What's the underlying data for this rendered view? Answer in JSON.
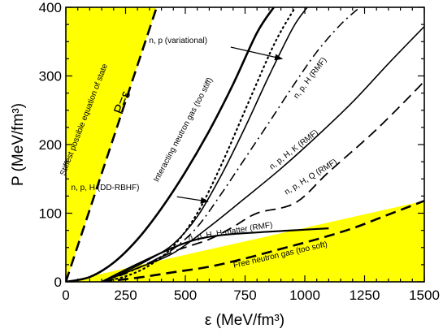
{
  "chart_data": {
    "type": "line",
    "title": "",
    "xlabel": "ε (MeV/fm³)",
    "ylabel": "P (MeV/fm³)",
    "xlim": [
      0,
      1500
    ],
    "ylim": [
      0,
      400
    ],
    "x_ticks": [
      "0",
      "250",
      "500",
      "750",
      "1000",
      "1250",
      "1500"
    ],
    "y_ticks": [
      "0",
      "100",
      "200",
      "300",
      "400"
    ],
    "grid": false,
    "legend": "none",
    "fill_color": "#ffff00",
    "regions": [
      {
        "name": "causality-excluded",
        "label": "",
        "points": [
          [
            0,
            0
          ],
          [
            0,
            400
          ],
          [
            380,
            400
          ]
        ]
      },
      {
        "name": "free-gas-excluded",
        "label": "",
        "points": [
          [
            0,
            0
          ],
          [
            1500,
            118
          ],
          [
            1500,
            0
          ]
        ]
      }
    ],
    "series": [
      {
        "name": "stiffest",
        "style": "dashed",
        "width": 2.6,
        "x": [
          0,
          380
        ],
        "y": [
          0,
          400
        ]
      },
      {
        "name": "interacting-neutron",
        "style": "solid",
        "width": 2.6,
        "x": [
          0,
          100,
          200,
          300,
          400,
          500,
          600,
          700,
          800,
          870
        ],
        "y": [
          0,
          7,
          28,
          62,
          107,
          160,
          220,
          288,
          363,
          400
        ]
      },
      {
        "name": "variational",
        "style": "dotted",
        "width": 2.2,
        "x": [
          150,
          250,
          350,
          450,
          550,
          650,
          750,
          850,
          900,
          960
        ],
        "y": [
          0,
          8,
          24,
          52,
          100,
          170,
          250,
          330,
          365,
          400
        ]
      },
      {
        "name": "npH-DDRBHF",
        "style": "solid",
        "width": 1.6,
        "x": [
          150,
          250,
          350,
          450,
          550,
          650,
          750,
          850,
          950,
          1010
        ],
        "y": [
          0,
          15,
          33,
          55,
          95,
          155,
          225,
          300,
          370,
          400
        ]
      },
      {
        "name": "npH-RMF",
        "style": "dashdot",
        "width": 1.6,
        "x": [
          150,
          250,
          350,
          450,
          550,
          650,
          750,
          850,
          950,
          1050,
          1150,
          1230
        ],
        "y": [
          0,
          12,
          28,
          48,
          80,
          128,
          180,
          232,
          285,
          335,
          375,
          400
        ]
      },
      {
        "name": "npHK-RMF",
        "style": "solid",
        "width": 1.6,
        "x": [
          150,
          300,
          450,
          600,
          750,
          900,
          1050,
          1200,
          1350,
          1500
        ],
        "y": [
          0,
          20,
          42,
          80,
          122,
          165,
          212,
          262,
          318,
          372
        ]
      },
      {
        "name": "npHQ-RMF",
        "style": "dashed",
        "width": 1.8,
        "x": [
          150,
          300,
          450,
          600,
          700,
          800,
          960,
          1100,
          1300,
          1500
        ],
        "y": [
          0,
          20,
          44,
          62,
          80,
          100,
          115,
          160,
          222,
          292
        ]
      },
      {
        "name": "npH-Hmatter",
        "style": "solid",
        "width": 2.2,
        "x": [
          150,
          300,
          450,
          550,
          650,
          800,
          950,
          1100
        ],
        "y": [
          0,
          26,
          50,
          62,
          68,
          72,
          75,
          78
        ]
      },
      {
        "name": "free-neutron",
        "style": "dashed",
        "width": 2.6,
        "x": [
          150,
          300,
          450,
          600,
          750,
          900,
          1050,
          1200,
          1350,
          1500
        ],
        "y": [
          0,
          6,
          14,
          22,
          34,
          48,
          62,
          78,
          98,
          118
        ]
      }
    ],
    "annotations": [
      {
        "name": "label-stiffest",
        "text": "Stiffest possible equation of state",
        "x": 85,
        "y": 235,
        "rotate": -69,
        "size": "small"
      },
      {
        "name": "label-p-eq-e",
        "text": "P=ε",
        "x": 253,
        "y": 259,
        "rotate": -69,
        "size": "big"
      },
      {
        "name": "label-interacting",
        "text": "Interacting neutron gas (too stiff)",
        "x": 500,
        "y": 220,
        "rotate": -62,
        "size": "small"
      },
      {
        "name": "label-variational",
        "text": "n, p (variational)",
        "x": 470,
        "y": 348,
        "rotate": 0,
        "size": "small"
      },
      {
        "name": "label-npH-RMF",
        "text": "n, p, H (RMF)",
        "x": 1030,
        "y": 295,
        "rotate": -53,
        "size": "small"
      },
      {
        "name": "label-npHK-RMF",
        "text": "n, p, H, K (RMF)",
        "x": 960,
        "y": 190,
        "rotate": -38,
        "size": "small"
      },
      {
        "name": "label-npHQ-RMF",
        "text": "n, p, H, Q (RMF)",
        "x": 1030,
        "y": 150,
        "rotate": -32,
        "size": "small"
      },
      {
        "name": "label-DDRBHF",
        "text": "n, p, H (DD-RBHF)",
        "x": 165,
        "y": 134,
        "rotate": 0,
        "size": "small"
      },
      {
        "name": "label-Hmatter",
        "text": "n, p, H, H-matter (RMF)",
        "x": 690,
        "y": 70,
        "rotate": -9,
        "size": "small"
      },
      {
        "name": "label-free-neutron",
        "text": "Free neutron gas (too soft)",
        "x": 900,
        "y": 36,
        "rotate": -13,
        "size": "small"
      }
    ],
    "arrows": [
      {
        "name": "arrow-variational",
        "from": [
          690,
          342
        ],
        "to": [
          905,
          325
        ]
      },
      {
        "name": "arrow-DDRBHF",
        "from": [
          465,
          124
        ],
        "to": [
          595,
          117
        ]
      }
    ]
  }
}
